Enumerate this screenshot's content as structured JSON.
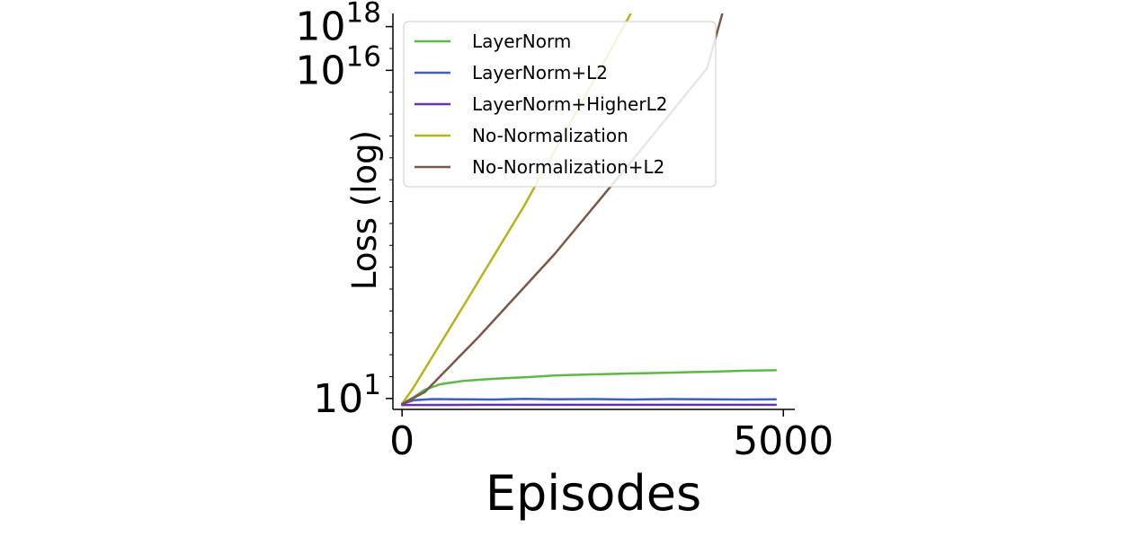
{
  "chart_data": {
    "type": "line",
    "xlabel": "Episodes",
    "ylabel": "Loss (log)",
    "xlim": [
      -120,
      5150
    ],
    "x_ticks": [
      0,
      5000
    ],
    "y_scale": "log",
    "ylim_exp": [
      0.5,
      18.6
    ],
    "y_tick_labels": [
      {
        "exp": 1,
        "base": "10",
        "sup": "1"
      },
      {
        "exp": 16,
        "base": "10",
        "sup": "16"
      },
      {
        "exp": 18,
        "base": "10",
        "sup": "18"
      }
    ],
    "legend_position": "upper-left",
    "grid": false,
    "series": [
      {
        "name": "LayerNorm",
        "color": "#5db847",
        "x": [
          0,
          150,
          300,
          500,
          800,
          1200,
          1600,
          2000,
          2500,
          3000,
          3500,
          4000,
          4500,
          4900
        ],
        "log10_y": [
          0.75,
          1.05,
          1.4,
          1.65,
          1.8,
          1.9,
          1.97,
          2.05,
          2.1,
          2.14,
          2.18,
          2.22,
          2.27,
          2.29
        ]
      },
      {
        "name": "LayerNorm+L2",
        "color": "#3b5fc0",
        "x": [
          0,
          150,
          400,
          800,
          1200,
          1600,
          2000,
          2500,
          3000,
          3500,
          4000,
          4500,
          4900
        ],
        "log10_y": [
          0.75,
          0.92,
          0.97,
          0.96,
          0.95,
          0.98,
          0.96,
          0.97,
          0.95,
          0.97,
          0.96,
          0.95,
          0.96
        ]
      },
      {
        "name": "LayerNorm+HigherL2",
        "color": "#6a35a8",
        "x": [
          0,
          1000,
          2000,
          3000,
          4000,
          4900
        ],
        "log10_y": [
          0.7,
          0.71,
          0.71,
          0.71,
          0.71,
          0.71
        ]
      },
      {
        "name": "No-Normalization",
        "color": "#b5b417",
        "x": [
          0,
          150,
          800,
          1600,
          2300,
          3000
        ],
        "log10_y": [
          0.75,
          1.5,
          5.2,
          9.8,
          14.2,
          18.6
        ]
      },
      {
        "name": "No-Normalization+L2",
        "color": "#7b5649",
        "x": [
          0,
          300,
          1000,
          2000,
          3000,
          4000,
          4200
        ],
        "log10_y": [
          0.75,
          1.3,
          3.8,
          7.6,
          11.8,
          16.1,
          18.6
        ]
      }
    ]
  }
}
